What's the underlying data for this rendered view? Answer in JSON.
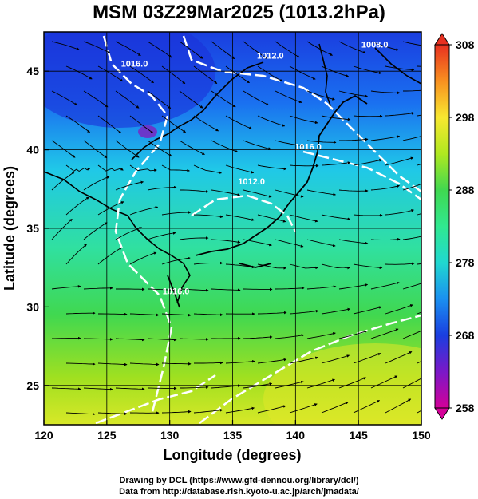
{
  "title": "MSM 03Z29Mar2025 (1013.2hPa)",
  "footer": {
    "line1": "Drawing by DCL (https://www.gfd-dennou.org/library/dcl/)",
    "line2": "Data from http://database.rish.kyoto-u.ac.jp/arch/jmadata/"
  },
  "map": {
    "xlabel": "Longitude (degrees)",
    "ylabel": "Latitude  (degrees)",
    "xlim": [
      120,
      150
    ],
    "ylim": [
      22.5,
      47.5
    ],
    "xticks": [
      120,
      125,
      130,
      135,
      140,
      145,
      150
    ],
    "yticks": [
      25,
      30,
      35,
      40,
      45
    ],
    "grid": true
  },
  "colorbar": {
    "min": 258,
    "max": 308,
    "ticks": [
      258,
      268,
      278,
      288,
      298,
      308
    ],
    "colors": [
      "#d40098",
      "#7a18c8",
      "#1a3ee0",
      "#1a90f0",
      "#20d8d0",
      "#30e890",
      "#40d850",
      "#b0e820",
      "#f8e830",
      "#f89020",
      "#e83020"
    ]
  },
  "isobars": [
    {
      "label": "1016.0",
      "lon": 127.2,
      "lat": 45.3
    },
    {
      "label": "1012.0",
      "lon": 138.0,
      "lat": 45.8
    },
    {
      "label": "1008.0",
      "lon": 146.3,
      "lat": 46.5
    },
    {
      "label": "1016.0",
      "lon": 141.0,
      "lat": 40.0
    },
    {
      "label": "1012.0",
      "lon": 136.5,
      "lat": 37.8
    },
    {
      "label": "1016.0",
      "lon": 130.5,
      "lat": 30.8
    }
  ]
}
